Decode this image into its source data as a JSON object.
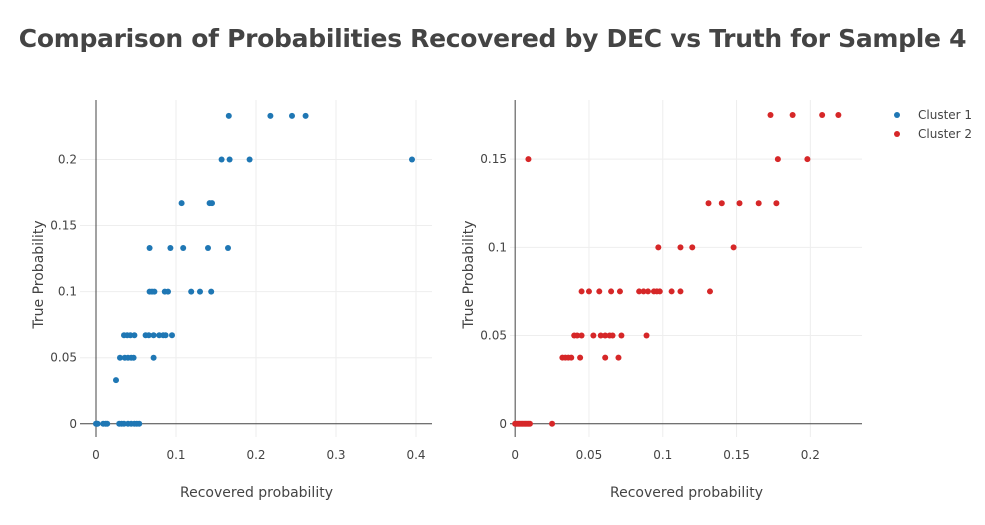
{
  "title": "Comparison of Probabilities Recovered by DEC vs Truth for Sample 4",
  "chart_data": [
    {
      "type": "scatter",
      "name": "Cluster 1",
      "color": "#1f77b4",
      "xlabel": "Recovered probability",
      "ylabel": "True Probability",
      "xlim": [
        -0.02,
        0.42
      ],
      "ylim": [
        -0.01,
        0.245
      ],
      "xticks": [
        0,
        0.1,
        0.2,
        0.3,
        0.4
      ],
      "xtick_labels": [
        "0",
        "0.1",
        "0.2",
        "0.3",
        "0.4"
      ],
      "yticks": [
        0,
        0.05,
        0.1,
        0.15,
        0.2
      ],
      "ytick_labels": [
        "0",
        "0.05",
        "0.1",
        "0.15",
        "0.2"
      ],
      "points": [
        [
          0.0,
          0.0
        ],
        [
          0.001,
          0.0
        ],
        [
          0.002,
          0.0
        ],
        [
          0.009,
          0.0
        ],
        [
          0.012,
          0.0
        ],
        [
          0.014,
          0.0
        ],
        [
          0.029,
          0.0
        ],
        [
          0.032,
          0.0
        ],
        [
          0.035,
          0.0
        ],
        [
          0.04,
          0.0
        ],
        [
          0.044,
          0.0
        ],
        [
          0.048,
          0.0
        ],
        [
          0.051,
          0.0
        ],
        [
          0.054,
          0.0
        ],
        [
          0.025,
          0.033
        ],
        [
          0.03,
          0.05
        ],
        [
          0.036,
          0.05
        ],
        [
          0.04,
          0.05
        ],
        [
          0.044,
          0.05
        ],
        [
          0.047,
          0.05
        ],
        [
          0.072,
          0.05
        ],
        [
          0.035,
          0.067
        ],
        [
          0.039,
          0.067
        ],
        [
          0.043,
          0.067
        ],
        [
          0.048,
          0.067
        ],
        [
          0.062,
          0.067
        ],
        [
          0.066,
          0.067
        ],
        [
          0.072,
          0.067
        ],
        [
          0.079,
          0.067
        ],
        [
          0.084,
          0.067
        ],
        [
          0.087,
          0.067
        ],
        [
          0.095,
          0.067
        ],
        [
          0.067,
          0.1
        ],
        [
          0.07,
          0.1
        ],
        [
          0.073,
          0.1
        ],
        [
          0.086,
          0.1
        ],
        [
          0.09,
          0.1
        ],
        [
          0.119,
          0.1
        ],
        [
          0.13,
          0.1
        ],
        [
          0.144,
          0.1
        ],
        [
          0.067,
          0.133
        ],
        [
          0.093,
          0.133
        ],
        [
          0.109,
          0.133
        ],
        [
          0.14,
          0.133
        ],
        [
          0.165,
          0.133
        ],
        [
          0.107,
          0.167
        ],
        [
          0.142,
          0.167
        ],
        [
          0.145,
          0.167
        ],
        [
          0.157,
          0.2
        ],
        [
          0.167,
          0.2
        ],
        [
          0.192,
          0.2
        ],
        [
          0.395,
          0.2
        ],
        [
          0.166,
          0.233
        ],
        [
          0.218,
          0.233
        ],
        [
          0.245,
          0.233
        ],
        [
          0.262,
          0.233
        ]
      ]
    },
    {
      "type": "scatter",
      "name": "Cluster 2",
      "color": "#d62728",
      "xlabel": "Recovered probability",
      "ylabel": "True Probability",
      "xlim": [
        -0.0035,
        0.235
      ],
      "ylim": [
        -0.0075,
        0.1835
      ],
      "xticks": [
        0,
        0.05,
        0.1,
        0.15,
        0.2
      ],
      "xtick_labels": [
        "0",
        "0.05",
        "0.1",
        "0.15",
        "0.2"
      ],
      "yticks": [
        0,
        0.05,
        0.1,
        0.15
      ],
      "ytick_labels": [
        "0",
        "0.05",
        "0.1",
        "0.15"
      ],
      "points": [
        [
          0.0,
          0.0
        ],
        [
          0.001,
          0.0
        ],
        [
          0.002,
          0.0
        ],
        [
          0.003,
          0.0
        ],
        [
          0.004,
          0.0
        ],
        [
          0.005,
          0.0
        ],
        [
          0.006,
          0.0
        ],
        [
          0.007,
          0.0
        ],
        [
          0.008,
          0.0
        ],
        [
          0.009,
          0.0
        ],
        [
          0.01,
          0.0
        ],
        [
          0.025,
          0.0
        ],
        [
          0.009,
          0.15
        ],
        [
          0.032,
          0.0375
        ],
        [
          0.034,
          0.0375
        ],
        [
          0.036,
          0.0375
        ],
        [
          0.038,
          0.0375
        ],
        [
          0.044,
          0.0375
        ],
        [
          0.061,
          0.0375
        ],
        [
          0.07,
          0.0375
        ],
        [
          0.04,
          0.05
        ],
        [
          0.042,
          0.05
        ],
        [
          0.045,
          0.05
        ],
        [
          0.053,
          0.05
        ],
        [
          0.058,
          0.05
        ],
        [
          0.061,
          0.05
        ],
        [
          0.064,
          0.05
        ],
        [
          0.066,
          0.05
        ],
        [
          0.072,
          0.05
        ],
        [
          0.089,
          0.05
        ],
        [
          0.045,
          0.075
        ],
        [
          0.05,
          0.075
        ],
        [
          0.057,
          0.075
        ],
        [
          0.065,
          0.075
        ],
        [
          0.071,
          0.075
        ],
        [
          0.084,
          0.075
        ],
        [
          0.087,
          0.075
        ],
        [
          0.09,
          0.075
        ],
        [
          0.094,
          0.075
        ],
        [
          0.096,
          0.075
        ],
        [
          0.098,
          0.075
        ],
        [
          0.106,
          0.075
        ],
        [
          0.112,
          0.075
        ],
        [
          0.132,
          0.075
        ],
        [
          0.097,
          0.1
        ],
        [
          0.112,
          0.1
        ],
        [
          0.12,
          0.1
        ],
        [
          0.148,
          0.1
        ],
        [
          0.131,
          0.125
        ],
        [
          0.14,
          0.125
        ],
        [
          0.152,
          0.125
        ],
        [
          0.165,
          0.125
        ],
        [
          0.177,
          0.125
        ],
        [
          0.178,
          0.15
        ],
        [
          0.198,
          0.15
        ],
        [
          0.173,
          0.175
        ],
        [
          0.188,
          0.175
        ],
        [
          0.208,
          0.175
        ],
        [
          0.219,
          0.175
        ]
      ]
    }
  ],
  "legend": [
    {
      "label": "Cluster 1",
      "color": "#1f77b4"
    },
    {
      "label": "Cluster 2",
      "color": "#d62728"
    }
  ]
}
